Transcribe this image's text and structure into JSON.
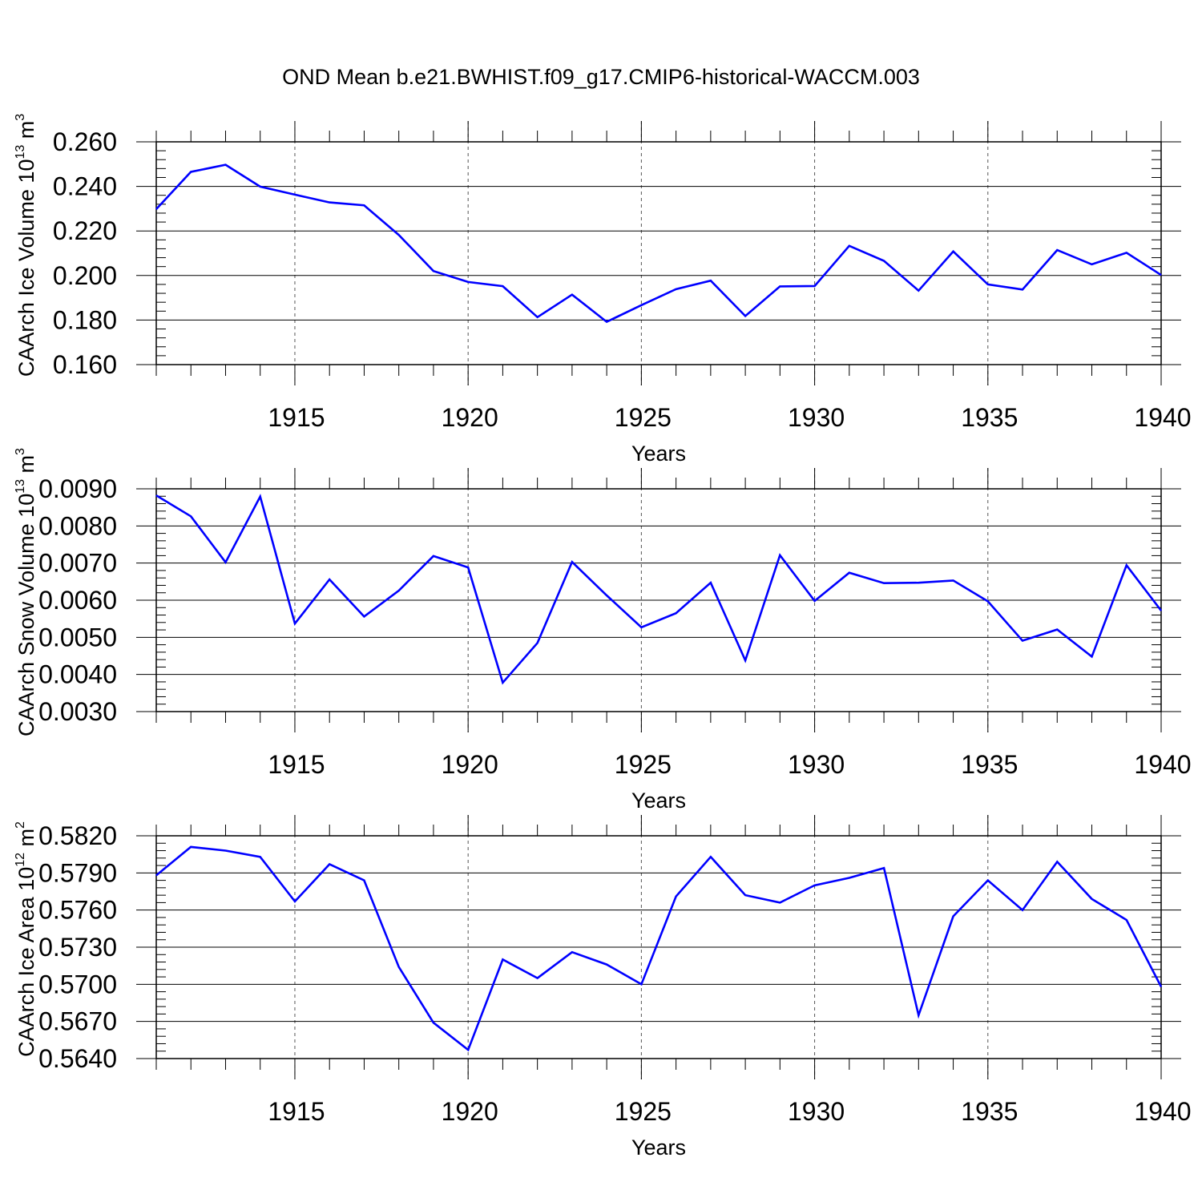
{
  "figure": {
    "title": "OND Mean b.e21.BWHIST.f09_g17.CMIP6-historical-WACCM.003",
    "line_color": "#0000ff"
  },
  "chart_data": [
    {
      "type": "line",
      "title": "OND Mean b.e21.BWHIST.f09_g17.CMIP6-historical-WACCM.003",
      "ylabel": {
        "base": "CAArch Ice Volume 10",
        "exp1": "13",
        "mid": " m",
        "exp2": "3"
      },
      "xlabel": "Years",
      "xlim": [
        1911,
        1940
      ],
      "ylim": [
        0.16,
        0.26
      ],
      "ytick_values": [
        0.16,
        0.18,
        0.2,
        0.22,
        0.24,
        0.26
      ],
      "ytick_labels": [
        "0.160",
        "0.180",
        "0.200",
        "0.220",
        "0.240",
        "0.260"
      ],
      "xtick_values": [
        1915,
        1920,
        1925,
        1930,
        1935,
        1940
      ],
      "xtick_labels": [
        "1915",
        "1920",
        "1925",
        "1930",
        "1935",
        "1940"
      ],
      "grid": "vertical dashed at major x ticks",
      "x": [
        1911,
        1912,
        1913,
        1914,
        1915,
        1916,
        1917,
        1918,
        1919,
        1920,
        1921,
        1922,
        1923,
        1924,
        1925,
        1926,
        1927,
        1928,
        1929,
        1930,
        1931,
        1932,
        1933,
        1934,
        1935,
        1936,
        1937,
        1938,
        1939,
        1940
      ],
      "y": [
        0.2298,
        0.2465,
        0.2497,
        0.2399,
        0.2363,
        0.2328,
        0.2315,
        0.2182,
        0.202,
        0.1971,
        0.1952,
        0.1813,
        0.1914,
        0.1792,
        0.1867,
        0.1939,
        0.1977,
        0.1818,
        0.1951,
        0.1953,
        0.2133,
        0.2066,
        0.1932,
        0.2108,
        0.196,
        0.1937,
        0.2114,
        0.205,
        0.2102,
        0.2002
      ]
    },
    {
      "type": "line",
      "ylabel": {
        "base": "CAArch Snow Volume 10",
        "exp1": "13",
        "mid": " m",
        "exp2": "3"
      },
      "xlabel": "Years",
      "xlim": [
        1911,
        1940
      ],
      "ylim": [
        0.003,
        0.009
      ],
      "ytick_values": [
        0.003,
        0.004,
        0.005,
        0.006,
        0.007,
        0.008,
        0.009
      ],
      "ytick_labels": [
        "0.0030",
        "0.0040",
        "0.0050",
        "0.0060",
        "0.0070",
        "0.0080",
        "0.0090"
      ],
      "xtick_values": [
        1915,
        1920,
        1925,
        1930,
        1935,
        1940
      ],
      "xtick_labels": [
        "1915",
        "1920",
        "1925",
        "1930",
        "1935",
        "1940"
      ],
      "grid": "vertical dashed at major x ticks",
      "x": [
        1911,
        1912,
        1913,
        1914,
        1915,
        1916,
        1917,
        1918,
        1919,
        1920,
        1921,
        1922,
        1923,
        1924,
        1925,
        1926,
        1927,
        1928,
        1929,
        1930,
        1931,
        1932,
        1933,
        1934,
        1935,
        1936,
        1937,
        1938,
        1939,
        1940
      ],
      "y": [
        0.00882,
        0.00826,
        0.00702,
        0.00879,
        0.00537,
        0.00656,
        0.00556,
        0.00626,
        0.00719,
        0.00688,
        0.00378,
        0.00485,
        0.00703,
        0.00613,
        0.00527,
        0.00565,
        0.00647,
        0.00438,
        0.00721,
        0.00598,
        0.00674,
        0.00646,
        0.00647,
        0.00653,
        0.00597,
        0.00491,
        0.00521,
        0.00448,
        0.00694,
        0.00572
      ]
    },
    {
      "type": "line",
      "ylabel": {
        "base": "CAArch Ice Area 10",
        "exp1": "12",
        "mid": " m",
        "exp2": "2"
      },
      "xlabel": "Years",
      "xlim": [
        1911,
        1940
      ],
      "ylim": [
        0.564,
        0.582
      ],
      "ytick_values": [
        0.564,
        0.567,
        0.57,
        0.573,
        0.576,
        0.579,
        0.582
      ],
      "ytick_labels": [
        "0.5640",
        "0.5670",
        "0.5700",
        "0.5730",
        "0.5760",
        "0.5790",
        "0.5820"
      ],
      "xtick_values": [
        1915,
        1920,
        1925,
        1930,
        1935,
        1940
      ],
      "xtick_labels": [
        "1915",
        "1920",
        "1925",
        "1930",
        "1935",
        "1940"
      ],
      "grid": "vertical dashed at major x ticks",
      "x": [
        1911,
        1912,
        1913,
        1914,
        1915,
        1916,
        1917,
        1918,
        1919,
        1920,
        1921,
        1922,
        1923,
        1924,
        1925,
        1926,
        1927,
        1928,
        1929,
        1930,
        1931,
        1932,
        1933,
        1934,
        1935,
        1936,
        1937,
        1938,
        1939,
        1940
      ],
      "y": [
        0.5788,
        0.5811,
        0.5808,
        0.5803,
        0.5767,
        0.5797,
        0.5784,
        0.5714,
        0.5669,
        0.5647,
        0.572,
        0.5705,
        0.5726,
        0.5716,
        0.57,
        0.5771,
        0.5803,
        0.5772,
        0.5766,
        0.578,
        0.5786,
        0.5794,
        0.5675,
        0.5755,
        0.5784,
        0.576,
        0.5799,
        0.5769,
        0.5752,
        0.5698
      ]
    }
  ]
}
